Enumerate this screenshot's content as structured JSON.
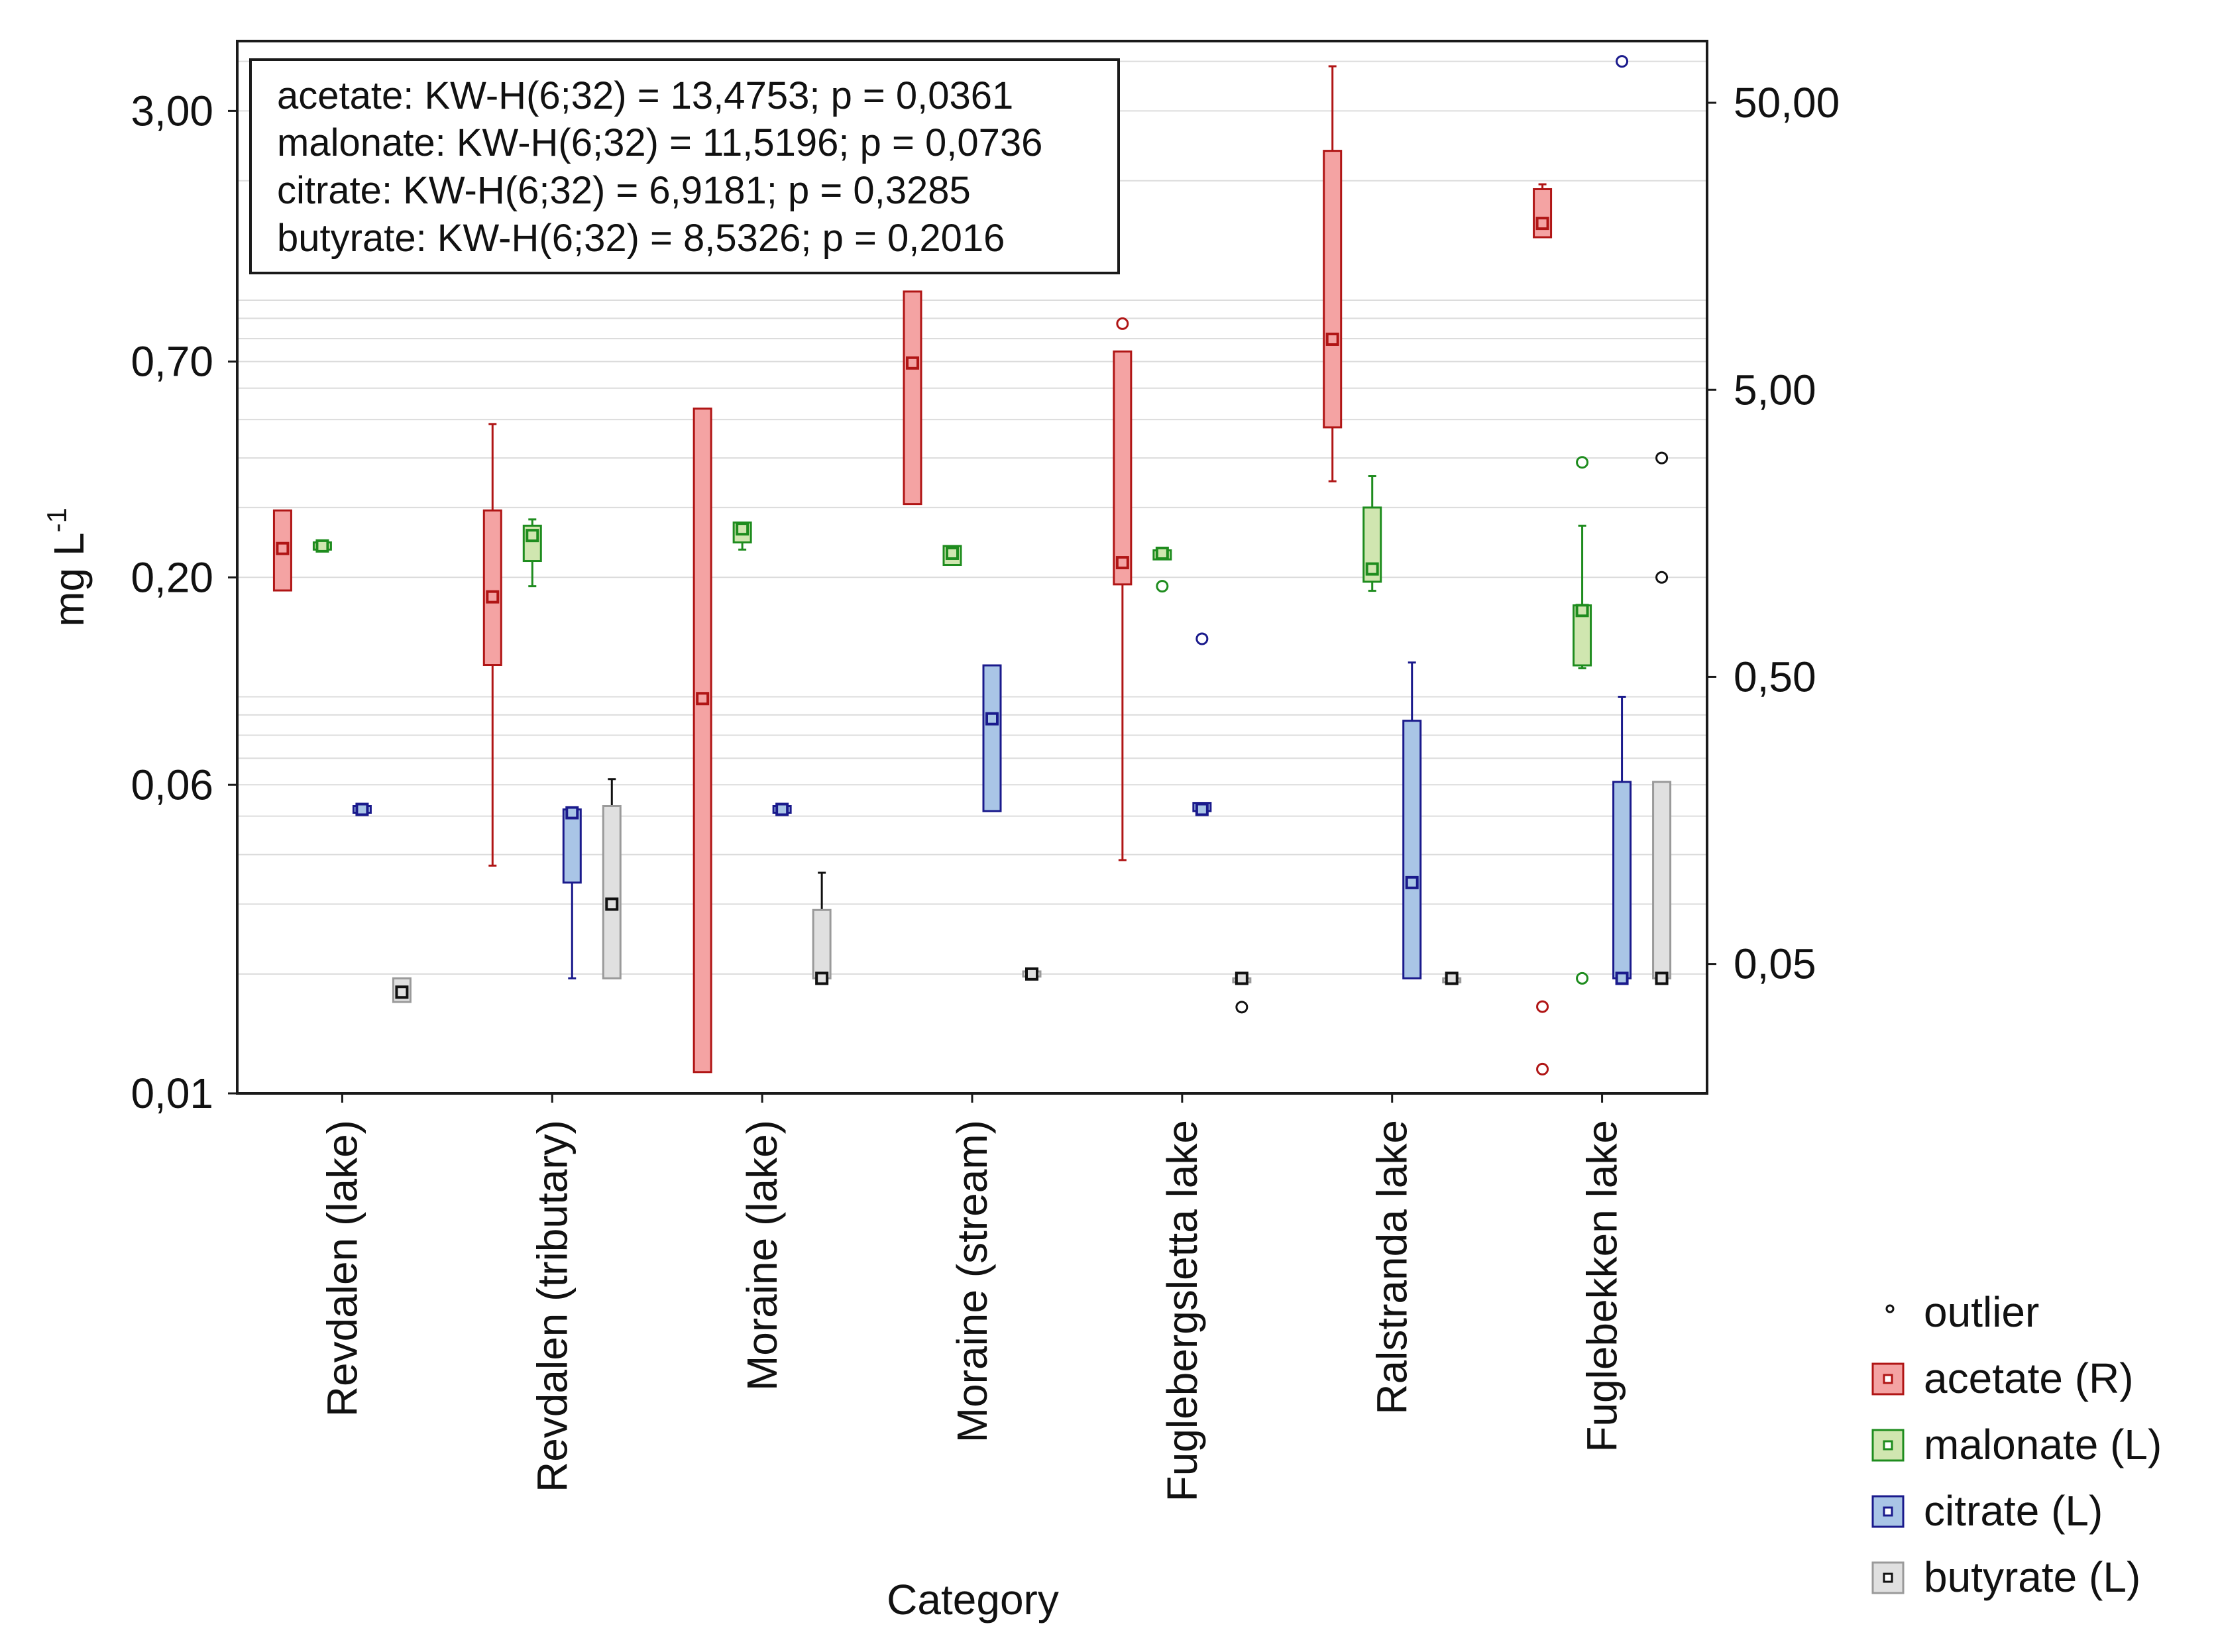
{
  "chart_data": {
    "type": "box",
    "xlabel": "Category",
    "ylabel_left": "mg L",
    "ylabel_left_superscript": "-1",
    "yscale": "log",
    "ylim_left": [
      0.01,
      4.5
    ],
    "ylim_right": [
      0.0177,
      82
    ],
    "left_ticks": [
      {
        "value": 3.0,
        "label": "3,00"
      },
      {
        "value": 0.7,
        "label": "0,70"
      },
      {
        "value": 0.2,
        "label": "0,20"
      },
      {
        "value": 0.06,
        "label": "0,06"
      },
      {
        "value": 0.01,
        "label": "0,01"
      }
    ],
    "right_ticks": [
      {
        "value": 50,
        "label": "50,00"
      },
      {
        "value": 5,
        "label": "5,00"
      },
      {
        "value": 0.5,
        "label": "0,50"
      },
      {
        "value": 0.05,
        "label": "0,05"
      }
    ],
    "gridlines": [
      4.0,
      3.0,
      2.0,
      1.0,
      0.9,
      0.8,
      0.7,
      0.6,
      0.5,
      0.4,
      0.3,
      0.2,
      0.1,
      0.09,
      0.08,
      0.07,
      0.06,
      0.05,
      0.04,
      0.03,
      0.02
    ],
    "categories": [
      "Revdalen (lake)",
      "Revdalen (tributary)",
      "Moraine (lake)",
      "Moraine (stream)",
      "Fuglebergsletta lake",
      "Ralstranda lake",
      "Fuglebekken lake"
    ],
    "stats_text": [
      "acetate: KW-H(6;32) = 13,4753; p = 0,0361",
      "malonate: KW-H(6;32) = 11,5196; p = 0,0736",
      "citrate: KW-H(6;32) = 6,9181; p = 0,3285",
      "butyrate: KW-H(6;32) = 8,5326; p = 0,2016"
    ],
    "legend": [
      {
        "key": "outlier",
        "label": "outlier"
      },
      {
        "key": "acetate",
        "label": "acetate (R)"
      },
      {
        "key": "malonate",
        "label": "malonate (L)"
      },
      {
        "key": "citrate",
        "label": "citrate (L)"
      },
      {
        "key": "butyrate",
        "label": "butyrate (L)"
      }
    ],
    "series": [
      {
        "name": "acetate",
        "axis": "right",
        "stroke": "#b01515",
        "fill": "#f4a3a3",
        "boxes": [
          {
            "median": 1.4,
            "q1": 1.0,
            "q3": 1.9,
            "min": null,
            "max": null,
            "outliers": []
          },
          {
            "median": 0.95,
            "q1": 0.55,
            "q3": 1.9,
            "min": 0.11,
            "max": 3.8,
            "outliers": []
          },
          {
            "median": 0.42,
            "q1": 0.021,
            "q3": 4.3,
            "min": null,
            "max": null,
            "outliers": []
          },
          {
            "median": 6.2,
            "q1": 2.0,
            "q3": 11.0,
            "min": null,
            "max": null,
            "outliers": []
          },
          {
            "median": 1.25,
            "q1": 1.05,
            "q3": 6.8,
            "min": 0.115,
            "max": null,
            "outliers": [
              8.5
            ]
          },
          {
            "median": 7.5,
            "q1": 3.7,
            "q3": 34.0,
            "min": 2.4,
            "max": 67.0,
            "outliers": []
          },
          {
            "median": 19.0,
            "q1": 17.0,
            "q3": 25.0,
            "min": null,
            "max": 26.0,
            "outliers": [
              0.0355,
              0.0215
            ]
          }
        ]
      },
      {
        "name": "malonate",
        "axis": "left",
        "stroke": "#1e8c1e",
        "fill": "#d0e6b0",
        "boxes": [
          {
            "median": 0.24,
            "q1": 0.235,
            "q3": 0.245,
            "min": null,
            "max": null,
            "outliers": []
          },
          {
            "median": 0.255,
            "q1": 0.22,
            "q3": 0.27,
            "min": 0.19,
            "max": 0.28,
            "outliers": []
          },
          {
            "median": 0.265,
            "q1": 0.245,
            "q3": 0.275,
            "min": 0.235,
            "max": null,
            "outliers": []
          },
          {
            "median": 0.23,
            "q1": 0.215,
            "q3": 0.24,
            "min": null,
            "max": null,
            "outliers": []
          },
          {
            "median": 0.23,
            "q1": 0.222,
            "q3": 0.234,
            "min": null,
            "max": null,
            "outliers": [
              0.19
            ]
          },
          {
            "median": 0.21,
            "q1": 0.195,
            "q3": 0.3,
            "min": 0.185,
            "max": 0.36,
            "outliers": []
          },
          {
            "median": 0.165,
            "q1": 0.12,
            "q3": 0.17,
            "min": 0.118,
            "max": 0.27,
            "outliers": [
              0.39,
              0.0195
            ]
          }
        ]
      },
      {
        "name": "citrate",
        "axis": "left",
        "stroke": "#1a1a8c",
        "fill": "#a9c5e6",
        "boxes": [
          {
            "median": 0.052,
            "q1": 0.051,
            "q3": 0.053,
            "min": null,
            "max": null,
            "outliers": []
          },
          {
            "median": 0.051,
            "q1": 0.034,
            "q3": 0.052,
            "min": 0.0195,
            "max": null,
            "outliers": []
          },
          {
            "median": 0.052,
            "q1": 0.051,
            "q3": 0.053,
            "min": null,
            "max": null,
            "outliers": []
          },
          {
            "median": 0.088,
            "q1": 0.0515,
            "q3": 0.12,
            "min": null,
            "max": null,
            "outliers": []
          },
          {
            "median": 0.052,
            "q1": 0.0515,
            "q3": 0.054,
            "min": null,
            "max": null,
            "outliers": [
              0.14
            ]
          },
          {
            "median": 0.034,
            "q1": 0.0195,
            "q3": 0.087,
            "min": null,
            "max": 0.122,
            "outliers": []
          },
          {
            "median": 0.0195,
            "q1": 0.0195,
            "q3": 0.061,
            "min": null,
            "max": 0.1,
            "outliers": [
              4.0
            ]
          }
        ]
      },
      {
        "name": "butyrate",
        "axis": "left",
        "stroke": "#111111",
        "fill": "#e0e0e0",
        "boxes": [
          {
            "median": 0.018,
            "q1": 0.017,
            "q3": 0.0195,
            "min": null,
            "max": null,
            "outliers": []
          },
          {
            "median": 0.03,
            "q1": 0.0195,
            "q3": 0.053,
            "min": null,
            "max": 0.062,
            "outliers": []
          },
          {
            "median": 0.0195,
            "q1": 0.0195,
            "q3": 0.029,
            "min": null,
            "max": 0.036,
            "outliers": []
          },
          {
            "median": 0.02,
            "q1": 0.0197,
            "q3": 0.0203,
            "min": null,
            "max": null,
            "outliers": []
          },
          {
            "median": 0.0195,
            "q1": 0.0195,
            "q3": 0.0195,
            "min": null,
            "max": null,
            "outliers": [
              0.0165
            ]
          },
          {
            "median": 0.0195,
            "q1": 0.0195,
            "q3": 0.0195,
            "min": null,
            "max": null,
            "outliers": []
          },
          {
            "median": 0.0195,
            "q1": 0.0195,
            "q3": 0.061,
            "min": null,
            "max": null,
            "outliers": [
              0.4,
              0.2
            ]
          }
        ]
      }
    ]
  }
}
